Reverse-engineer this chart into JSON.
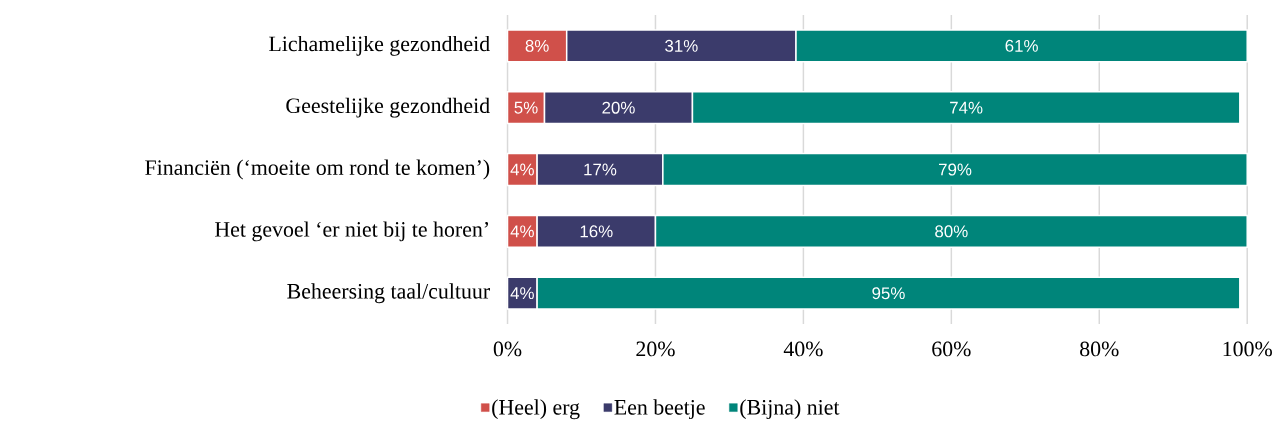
{
  "chart_data": {
    "type": "bar",
    "orientation": "horizontal",
    "stacked": true,
    "categories": [
      "Lichamelijke gezondheid",
      "Geestelijke gezondheid",
      "Financiën (‘moeite om rond te komen’)",
      "Het gevoel ‘er niet bij te horen’",
      "Beheersing taal/cultuur"
    ],
    "series": [
      {
        "name": "(Heel) erg",
        "color": "#d0504a",
        "values": [
          8,
          5,
          4,
          4,
          null
        ],
        "value_labels": [
          "8%",
          "5%",
          "4%",
          "4%",
          null
        ]
      },
      {
        "name": "Een beetje",
        "color": "#3b3b6b",
        "values": [
          31,
          20,
          17,
          16,
          4
        ],
        "value_labels": [
          "31%",
          "20%",
          "17%",
          "16%",
          "4%"
        ]
      },
      {
        "name": "(Bijna) niet",
        "color": "#00857a",
        "values": [
          61,
          74,
          79,
          80,
          95
        ],
        "value_labels": [
          "61%",
          "74%",
          "79%",
          "80%",
          "95%"
        ]
      }
    ],
    "xlim": [
      0,
      100
    ],
    "xticks": [
      {
        "value": 0,
        "label": "0%"
      },
      {
        "value": 20,
        "label": "20%"
      },
      {
        "value": 40,
        "label": "40%"
      },
      {
        "value": 60,
        "label": "60%"
      },
      {
        "value": 80,
        "label": "80%"
      },
      {
        "value": 100,
        "label": "100%"
      }
    ],
    "grid": "x",
    "legend": "bottom"
  }
}
